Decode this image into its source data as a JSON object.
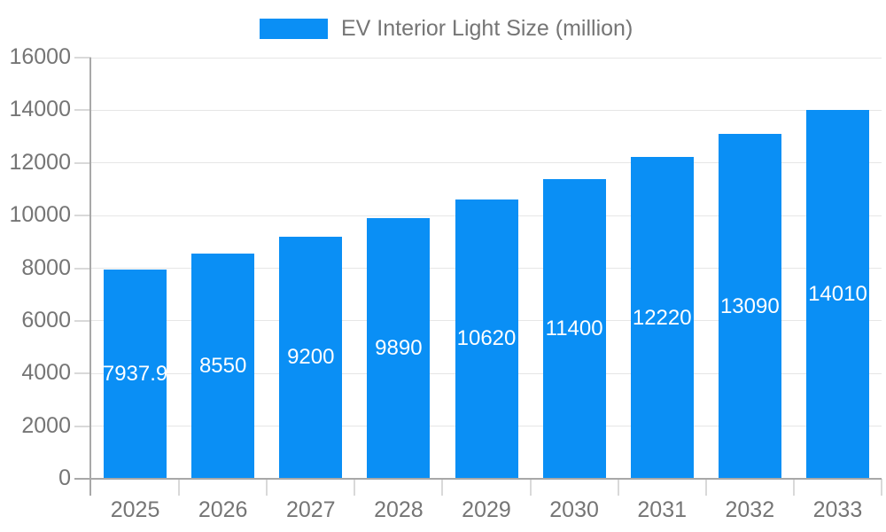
{
  "chart_data": {
    "type": "bar",
    "title": "",
    "series_name": "EV Interior Light Size (million)",
    "categories": [
      "2025",
      "2026",
      "2027",
      "2028",
      "2029",
      "2030",
      "2031",
      "2032",
      "2033"
    ],
    "values": [
      7937.9,
      8550,
      9200,
      9890,
      10620,
      11400,
      12220,
      13090,
      14010
    ],
    "bar_labels": [
      "7937.9",
      "8550",
      "9200",
      "9890",
      "10620",
      "11400",
      "12220",
      "13090",
      "14010"
    ],
    "xlabel": "",
    "ylabel": "",
    "ylim": [
      0,
      16000
    ],
    "yticks": [
      0,
      2000,
      4000,
      6000,
      8000,
      10000,
      12000,
      14000,
      16000
    ],
    "ytick_labels": [
      "0",
      "2000",
      "4000",
      "6000",
      "8000",
      "10000",
      "12000",
      "14000",
      "16000"
    ],
    "grid": true,
    "legend_position": "top-center",
    "bar_label_position": "inside-center"
  },
  "colors": {
    "bar": "#0a8ff5",
    "bar_label": "#ffffff",
    "axis_text": "#757575",
    "legend_text": "#757575",
    "gridline": "#e6e6e6",
    "tick": "#d9d9d9",
    "axis_line": "#a8a8a8",
    "background": "#ffffff"
  }
}
